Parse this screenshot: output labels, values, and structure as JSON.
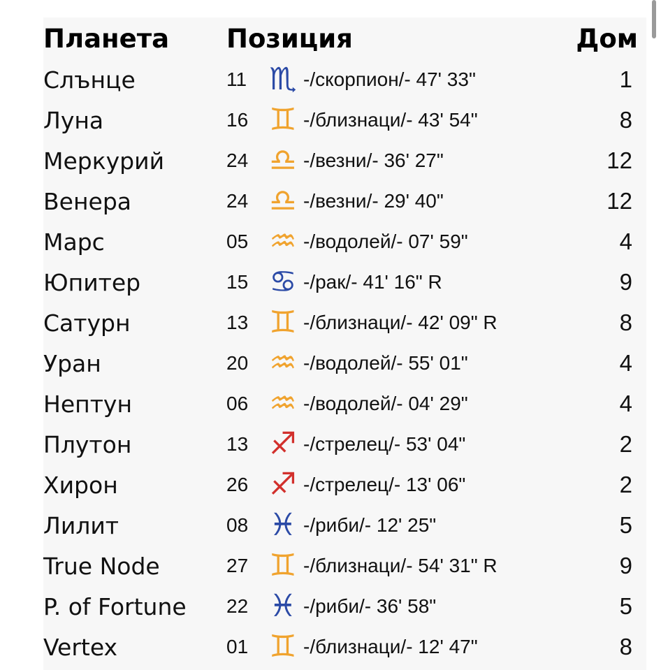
{
  "headers": {
    "planet": "Планета",
    "position": "Позиция",
    "house": "Дом"
  },
  "sign_colors": {
    "scorpio": "#2b4aa6",
    "gemini": "#f0a32e",
    "libra": "#f0a32e",
    "aquarius": "#f0a32e",
    "cancer": "#2b4aa6",
    "sagittarius": "#d2302c",
    "pisces": "#2b4aa6"
  },
  "sign_glyphs": {
    "scorpio": "♏",
    "gemini": "♊",
    "libra": "♎",
    "aquarius": "♒",
    "cancer": "♋",
    "sagittarius": "♐",
    "pisces": "♓"
  },
  "rows": [
    {
      "planet": "Слънце",
      "degree": "11",
      "sign": "scorpio",
      "text": "-/скорпион/- 47' 33\"",
      "house": "1"
    },
    {
      "planet": "Луна",
      "degree": "16",
      "sign": "gemini",
      "text": "-/близнаци/- 43' 54\"",
      "house": "8"
    },
    {
      "planet": "Меркурий",
      "degree": "24",
      "sign": "libra",
      "text": "-/везни/- 36' 27\"",
      "house": "12"
    },
    {
      "planet": "Венера",
      "degree": "24",
      "sign": "libra",
      "text": "-/везни/- 29' 40\"",
      "house": "12"
    },
    {
      "planet": "Марс",
      "degree": "05",
      "sign": "aquarius",
      "text": "-/водолей/- 07' 59\"",
      "house": "4"
    },
    {
      "planet": "Юпитер",
      "degree": "15",
      "sign": "cancer",
      "text": "-/рак/- 41' 16\" R",
      "house": "9"
    },
    {
      "planet": "Сатурн",
      "degree": "13",
      "sign": "gemini",
      "text": "-/близнаци/- 42' 09\" R",
      "house": "8"
    },
    {
      "planet": "Уран",
      "degree": "20",
      "sign": "aquarius",
      "text": "-/водолей/- 55' 01\"",
      "house": "4"
    },
    {
      "planet": "Нептун",
      "degree": "06",
      "sign": "aquarius",
      "text": "-/водолей/- 04' 29\"",
      "house": "4"
    },
    {
      "planet": "Плутон",
      "degree": "13",
      "sign": "sagittarius",
      "text": "-/стрелец/- 53' 04\"",
      "house": "2"
    },
    {
      "planet": "Хирон",
      "degree": "26",
      "sign": "sagittarius",
      "text": "-/стрелец/- 13' 06\"",
      "house": "2"
    },
    {
      "planet": "Лилит",
      "degree": "08",
      "sign": "pisces",
      "text": "-/риби/- 12' 25\"",
      "house": "5"
    },
    {
      "planet": "True Node",
      "degree": "27",
      "sign": "gemini",
      "text": "-/близнаци/- 54' 31\" R",
      "house": "9"
    },
    {
      "planet": "P. of Fortune",
      "degree": "22",
      "sign": "pisces",
      "text": "-/риби/- 36' 58\"",
      "house": "5"
    },
    {
      "planet": "Vertex",
      "degree": "01",
      "sign": "gemini",
      "text": "-/близнаци/- 12' 47\"",
      "house": "8"
    }
  ]
}
